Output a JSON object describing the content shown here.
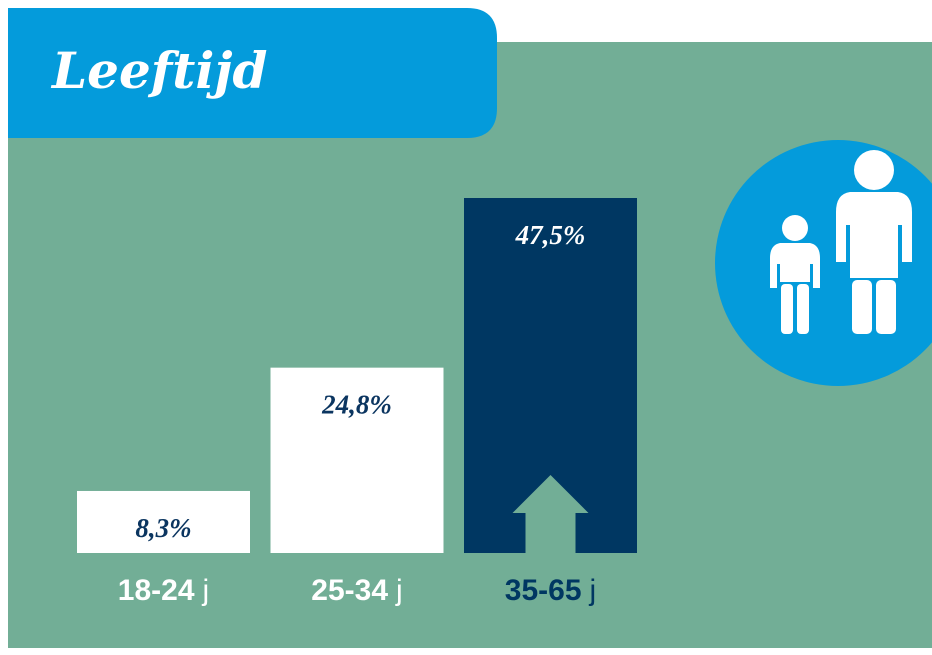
{
  "chart_data": {
    "type": "bar",
    "title": "Leeftijd",
    "categories": [
      "18-24",
      "25-34",
      "35-65"
    ],
    "unit": "j",
    "values": [
      8.3,
      24.8,
      47.5
    ],
    "value_labels": [
      "8,3%",
      "24,8%",
      "47,5%"
    ],
    "colors": [
      "#ffffff",
      "#ffffff",
      "#003762"
    ]
  }
}
